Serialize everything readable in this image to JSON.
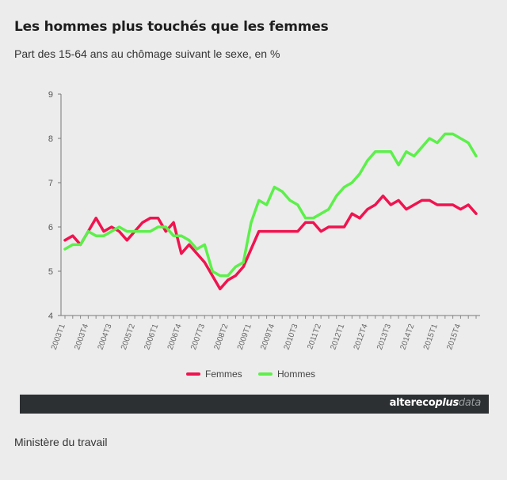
{
  "header": {
    "title": "Les hommes plus touchés que les femmes",
    "subtitle": "Part des 15-64 ans au chômage suivant le sexe, en %"
  },
  "footer": {
    "brand_parts": [
      "altereco",
      "plus",
      "data"
    ],
    "source": "Ministère du travail"
  },
  "colors": {
    "femmes": "#f0134f",
    "hommes": "#5cf04a",
    "banner": "#2d3032"
  },
  "chart_data": {
    "type": "line",
    "title": "Les hommes plus touchés que les femmes",
    "subtitle": "Part des 15-64 ans au chômage suivant le sexe, en %",
    "xlabel": "",
    "ylabel": "",
    "ylim": [
      4,
      9
    ],
    "yticks": [
      4,
      5,
      6,
      7,
      8,
      9
    ],
    "grid": false,
    "legend": "bottom",
    "x": [
      "2003T1",
      "2003T2",
      "2003T3",
      "2003T4",
      "2004T1",
      "2004T2",
      "2004T3",
      "2004T4",
      "2005T1",
      "2005T2",
      "2005T3",
      "2005T4",
      "2006T1",
      "2006T2",
      "2006T3",
      "2006T4",
      "2007T1",
      "2007T2",
      "2007T3",
      "2007T4",
      "2008T1",
      "2008T2",
      "2008T3",
      "2008T4",
      "2009T1",
      "2009T2",
      "2009T3",
      "2009T4",
      "2010T1",
      "2010T2",
      "2010T3",
      "2010T4",
      "2011T1",
      "2011T2",
      "2011T3",
      "2011T4",
      "2012T1",
      "2012T2",
      "2012T3",
      "2012T4",
      "2013T1",
      "2013T2",
      "2013T3",
      "2013T4",
      "2014T1",
      "2014T2",
      "2014T3",
      "2014T4",
      "2015T1",
      "2015T2",
      "2015T3",
      "2015T4",
      "2016T1",
      "2016T2"
    ],
    "xtick_labels": [
      "2003T1",
      "2003T4",
      "2004T3",
      "2005T2",
      "2006T1",
      "2006T4",
      "2007T3",
      "2008T2",
      "2009T1",
      "2009T4",
      "2010T3",
      "2011T2",
      "2012T1",
      "2012T4",
      "2013T3",
      "2014T2",
      "2015T1",
      "2015T4"
    ],
    "series": [
      {
        "name": "Femmes",
        "color": "#f0134f",
        "values": [
          5.7,
          5.8,
          5.6,
          5.9,
          6.2,
          5.9,
          6.0,
          5.9,
          5.7,
          5.9,
          6.1,
          6.2,
          6.2,
          5.9,
          6.1,
          5.4,
          5.6,
          5.4,
          5.2,
          4.9,
          4.6,
          4.8,
          4.9,
          5.1,
          5.5,
          5.9,
          5.9,
          5.9,
          5.9,
          5.9,
          5.9,
          6.1,
          6.1,
          5.9,
          6.0,
          6.0,
          6.0,
          6.3,
          6.2,
          6.4,
          6.5,
          6.7,
          6.5,
          6.6,
          6.4,
          6.5,
          6.6,
          6.6,
          6.5,
          6.5,
          6.5,
          6.4,
          6.5,
          6.3
        ]
      },
      {
        "name": "Hommes",
        "color": "#5cf04a",
        "values": [
          5.5,
          5.6,
          5.6,
          5.9,
          5.8,
          5.8,
          5.9,
          6.0,
          5.9,
          5.9,
          5.9,
          5.9,
          6.0,
          6.0,
          5.8,
          5.8,
          5.7,
          5.5,
          5.6,
          5.0,
          4.9,
          4.9,
          5.1,
          5.2,
          6.1,
          6.6,
          6.5,
          6.9,
          6.8,
          6.6,
          6.5,
          6.2,
          6.2,
          6.3,
          6.4,
          6.7,
          6.9,
          7.0,
          7.2,
          7.5,
          7.7,
          7.7,
          7.7,
          7.4,
          7.7,
          7.6,
          7.8,
          8.0,
          7.9,
          8.1,
          8.1,
          8.0,
          7.9,
          7.6
        ]
      }
    ]
  }
}
